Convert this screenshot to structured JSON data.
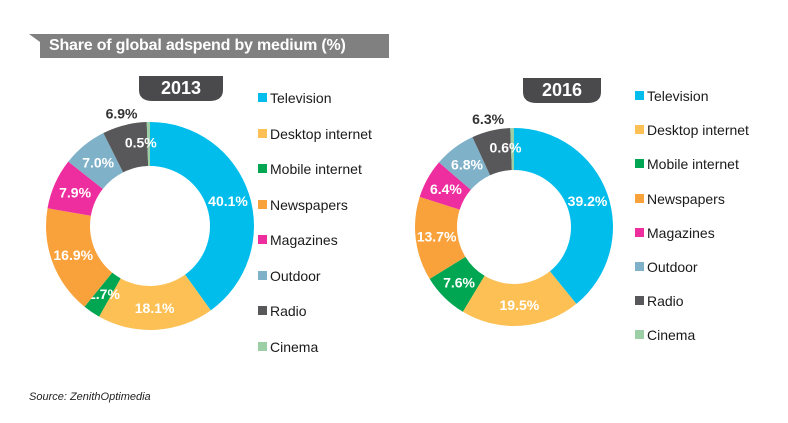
{
  "header": {
    "title": "Share of global adspend by medium (%)"
  },
  "source": "Source: ZenithOptimedia",
  "colors": {
    "Television": "#00BDEC",
    "Desktop internet": "#FDC054",
    "Mobile internet": "#00A651",
    "Newspapers": "#F9A23C",
    "Magazines": "#EE2E9E",
    "Outdoor": "#7FB1C9",
    "Radio": "#58585A",
    "Cinema": "#9DCFA6",
    "header_bg": "#808080",
    "tab_bg": "#4A4A4C"
  },
  "chart_data": [
    {
      "type": "pie",
      "subtype": "donut",
      "title": "2013",
      "categories": [
        "Television",
        "Desktop internet",
        "Mobile internet",
        "Newspapers",
        "Magazines",
        "Outdoor",
        "Radio",
        "Cinema"
      ],
      "values": [
        40.1,
        18.1,
        2.7,
        16.9,
        7.9,
        7.0,
        6.9,
        0.5
      ],
      "labels": [
        "40.1%",
        "18.1%",
        "2.7%",
        "16.9%",
        "7.9%",
        "7.0%",
        "6.9%",
        "0.5%"
      ],
      "legend": [
        "Television",
        "Desktop internet",
        "Mobile internet",
        "Newspapers",
        "Magazines",
        "Outdoor",
        "Radio",
        "Cinema"
      ],
      "legend_position": "right"
    },
    {
      "type": "pie",
      "subtype": "donut",
      "title": "2016",
      "categories": [
        "Television",
        "Desktop internet",
        "Mobile internet",
        "Newspapers",
        "Magazines",
        "Outdoor",
        "Radio",
        "Cinema"
      ],
      "values": [
        39.2,
        19.5,
        7.6,
        13.7,
        6.4,
        6.8,
        6.3,
        0.6
      ],
      "labels": [
        "39.2%",
        "19.5%",
        "7.6%",
        "13.7%",
        "6.4%",
        "6.8%",
        "6.3%",
        "0.6%"
      ],
      "legend": [
        "Television",
        "Desktop internet",
        "Mobile internet",
        "Newspapers",
        "Magazines",
        "Outdoor",
        "Radio",
        "Cinema"
      ],
      "legend_position": "right"
    }
  ]
}
